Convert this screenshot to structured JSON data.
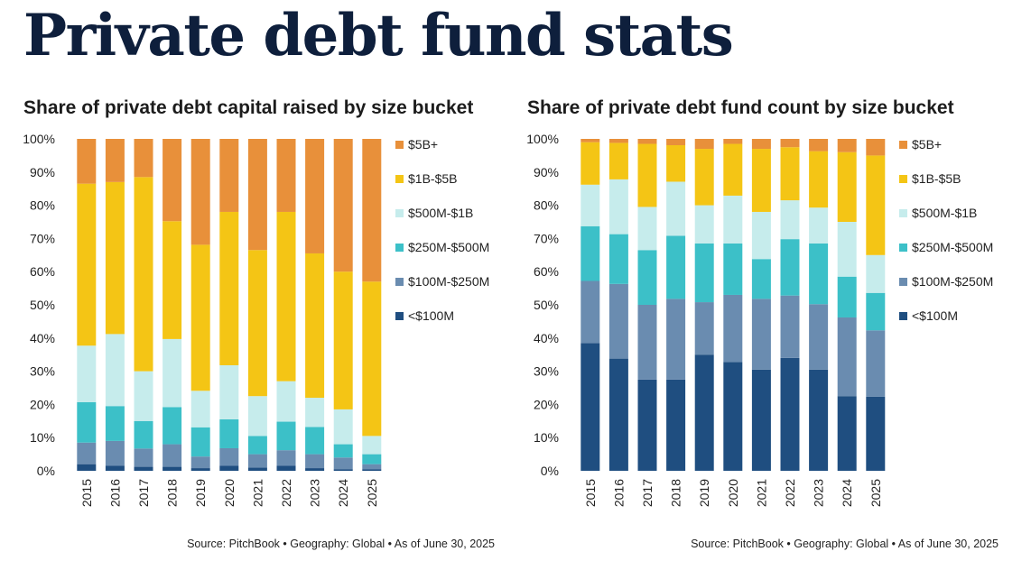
{
  "page": {
    "title": "Private debt fund stats"
  },
  "colors": {
    "lt100m": "#1f4e80",
    "100m_250m": "#6a8cb0",
    "250m_500m": "#3cc0c8",
    "500m_1b": "#c6ecec",
    "1b_5b": "#f4c515",
    "5b_plus": "#e8903a"
  },
  "chart_data": [
    {
      "type": "bar",
      "stacked": true,
      "title": "Share of private debt capital raised by size bucket",
      "source": "Source: PitchBook • Geography: Global • As of June 30, 2025",
      "categories": [
        "2015",
        "2016",
        "2017",
        "2018",
        "2019",
        "2020",
        "2021",
        "2022",
        "2023",
        "2024",
        "2025"
      ],
      "ylim": [
        0,
        100
      ],
      "y_ticks": [
        "0%",
        "10%",
        "20%",
        "30%",
        "40%",
        "50%",
        "60%",
        "70%",
        "80%",
        "90%",
        "100%"
      ],
      "legend_position": "right",
      "series": [
        {
          "name": "<$100M",
          "color_key": "lt100m",
          "values": [
            2,
            1.5,
            1.2,
            1.2,
            0.8,
            1.5,
            1,
            1.5,
            0.8,
            0.5,
            0.5
          ]
        },
        {
          "name": "$100M-$250M",
          "color_key": "100m_250m",
          "values": [
            6.5,
            7.5,
            5.5,
            6.8,
            3.5,
            5.3,
            4,
            4.7,
            4.2,
            3.5,
            1.5
          ]
        },
        {
          "name": "$250M-$500M",
          "color_key": "250m_500m",
          "values": [
            12.2,
            10.5,
            8.3,
            11.2,
            8.8,
            8.7,
            5.5,
            8.6,
            8.2,
            4,
            3
          ]
        },
        {
          "name": "$500M-$1B",
          "color_key": "500m_1b",
          "values": [
            17,
            21.7,
            15,
            20.5,
            11,
            16.3,
            12,
            12.2,
            8.8,
            10.5,
            5.5
          ]
        },
        {
          "name": "$1B-$5B",
          "color_key": "1b_5b",
          "values": [
            48.8,
            45.8,
            58.5,
            35.5,
            44,
            46.2,
            44,
            51,
            43.5,
            41.5,
            46.5
          ]
        },
        {
          "name": "$5B+",
          "color_key": "5b_plus",
          "values": [
            13.5,
            13,
            11.5,
            24.8,
            31.9,
            22,
            33.5,
            22,
            34.5,
            40,
            43
          ]
        }
      ]
    },
    {
      "type": "bar",
      "stacked": true,
      "title": "Share of private debt fund count by size bucket",
      "source": "Source: PitchBook • Geography: Global • As of June 30, 2025",
      "categories": [
        "2015",
        "2016",
        "2017",
        "2018",
        "2019",
        "2020",
        "2021",
        "2022",
        "2023",
        "2024",
        "2025"
      ],
      "ylim": [
        0,
        100
      ],
      "y_ticks": [
        "0%",
        "10%",
        "20%",
        "30%",
        "40%",
        "50%",
        "60%",
        "70%",
        "80%",
        "90%",
        "100%"
      ],
      "legend_position": "right",
      "series": [
        {
          "name": "<$100M",
          "color_key": "lt100m",
          "values": [
            38.5,
            33.8,
            27.5,
            27.5,
            35,
            32.8,
            30.5,
            34,
            30.5,
            22.5,
            22.3
          ]
        },
        {
          "name": "$100M-$250M",
          "color_key": "100m_250m",
          "values": [
            18.7,
            22.5,
            22.5,
            24.3,
            15.8,
            20.2,
            21.3,
            18.8,
            19.7,
            23.7,
            20
          ]
        },
        {
          "name": "$250M-$500M",
          "color_key": "250m_500m",
          "values": [
            16.5,
            15,
            16.5,
            19,
            17.7,
            15.5,
            12,
            17,
            18.3,
            12.3,
            11.3
          ]
        },
        {
          "name": "$500M-$1B",
          "color_key": "500m_1b",
          "values": [
            12.5,
            16.5,
            13,
            16.3,
            11.5,
            14.4,
            14.2,
            11.7,
            10.8,
            16.5,
            11.4
          ]
        },
        {
          "name": "$1B-$5B",
          "color_key": "1b_5b",
          "values": [
            12.8,
            11,
            19,
            11,
            17,
            15.6,
            19,
            16,
            17,
            21,
            30
          ]
        },
        {
          "name": "$5B+",
          "color_key": "5b_plus",
          "values": [
            1,
            1.2,
            1.5,
            1.9,
            3,
            1.5,
            3,
            2.5,
            3.7,
            4,
            5
          ]
        }
      ]
    }
  ]
}
